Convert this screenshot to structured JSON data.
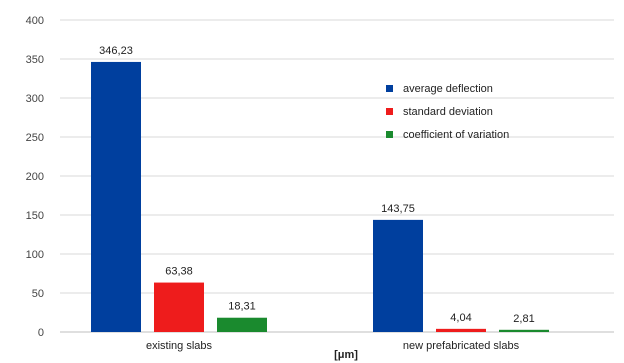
{
  "chart_data": {
    "type": "bar",
    "categories": [
      "existing slabs",
      "new prefabricated slabs"
    ],
    "series": [
      {
        "name": "average deflection",
        "values": [
          346.23,
          143.75
        ],
        "labels": [
          "346,23",
          "143,75"
        ],
        "color": "#003f9e"
      },
      {
        "name": "standard deviation",
        "values": [
          63.38,
          4.04
        ],
        "labels": [
          "63,38",
          "4,04"
        ],
        "color": "#ee1c1c"
      },
      {
        "name": "coefficient of variation",
        "values": [
          18.31,
          2.81
        ],
        "labels": [
          "18,31",
          "2,81"
        ],
        "color": "#1a8a2e"
      }
    ],
    "yticks": [
      "0",
      "50",
      "100",
      "150",
      "200",
      "250",
      "300",
      "350",
      "400"
    ],
    "ylim": [
      0,
      400
    ],
    "xlabel": "[μm]",
    "grid": true,
    "legend_position": "right-middle"
  }
}
